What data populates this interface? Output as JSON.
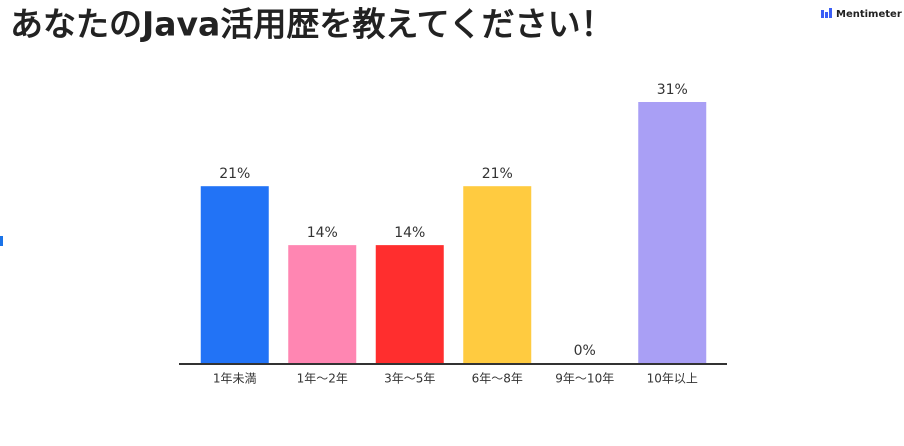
{
  "brand": "Mentimeter",
  "chart_data": {
    "type": "bar",
    "title": "あなたのJava活用歴を教えてください！",
    "categories": [
      "1年未満",
      "1年〜2年",
      "3年〜5年",
      "6年〜8年",
      "9年〜10年",
      "10年以上"
    ],
    "values": [
      21,
      14,
      14,
      21,
      0,
      31
    ],
    "value_labels": [
      "21%",
      "14%",
      "14%",
      "21%",
      "0%",
      "31%"
    ],
    "colors": [
      "#2273f6",
      "#ff86b2",
      "#ff2e2e",
      "#ffcb40",
      "#999999",
      "#a99ff5"
    ]
  }
}
